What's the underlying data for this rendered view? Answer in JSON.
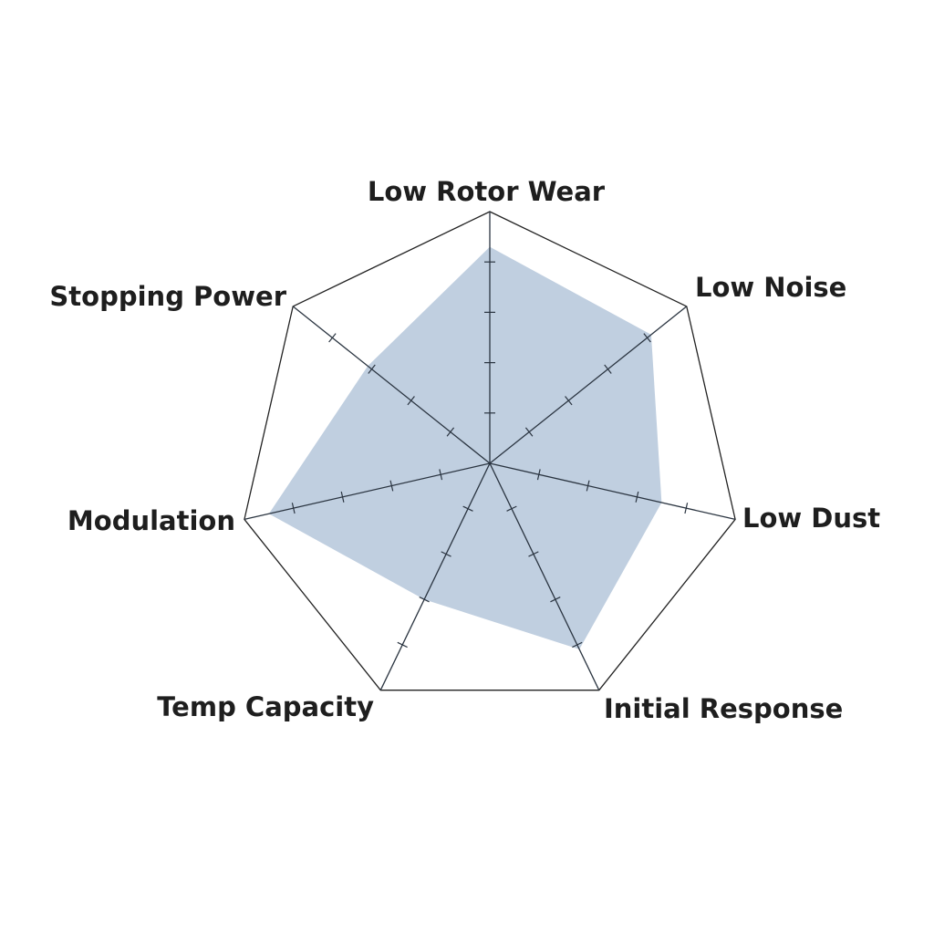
{
  "chart_data": {
    "type": "radar",
    "categories": [
      "Low Rotor Wear",
      "Low Noise",
      "Low Dust",
      "Initial Response",
      "Temp Capacity",
      "Modulation",
      "Stopping Power"
    ],
    "values": [
      4.3,
      4.1,
      3.5,
      4.1,
      3.0,
      4.5,
      3.1
    ],
    "range": [
      0,
      5
    ],
    "tick_divisions": 5,
    "grid": true,
    "colors": {
      "fill": "#c0cfe0",
      "stroke": "#222222",
      "text": "#1e1e1e"
    }
  }
}
